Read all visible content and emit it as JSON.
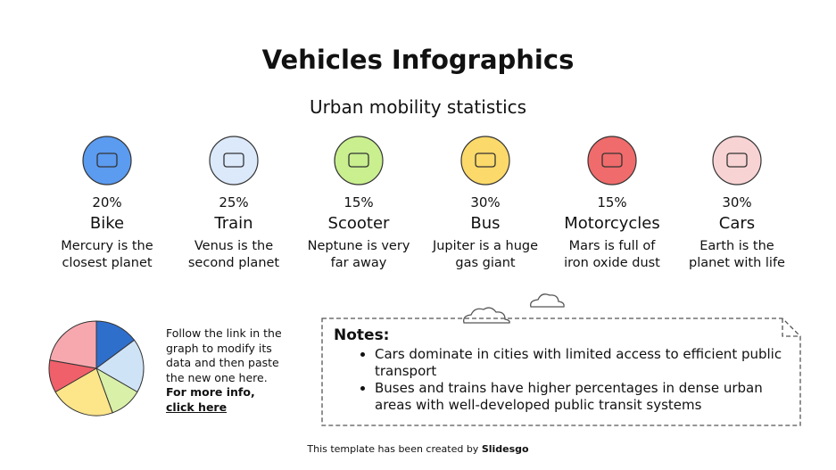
{
  "header": {
    "title": "Vehicles Infographics",
    "subtitle": "Urban mobility statistics"
  },
  "chart_data": {
    "type": "pie",
    "categories": [
      "Bike",
      "Train",
      "Scooter",
      "Bus",
      "Motorcycles",
      "Cars"
    ],
    "values": [
      20,
      25,
      15,
      30,
      15,
      30
    ],
    "value_labels": [
      "20%",
      "25%",
      "15%",
      "30%",
      "15%",
      "30%"
    ],
    "colors": [
      "#2f6fcc",
      "#cfe3f7",
      "#d8f0a8",
      "#fde58a",
      "#f0606a",
      "#f7a8ae"
    ]
  },
  "descriptions": [
    "Mercury is the closest planet",
    "Venus is the second planet",
    "Neptune is very far away",
    "Jupiter is a huge gas giant",
    "Mars is full of iron oxide dust",
    "Earth is the planet with life"
  ],
  "icon_colors": [
    "#5b9bf0",
    "#dbe9fb",
    "#c9ef8f",
    "#fbd96a",
    "#f06b6b",
    "#f8d3d3"
  ],
  "side_text": {
    "body": "Follow the link in the graph to modify its data and then paste the new one here.",
    "bold": "For more info,",
    "link": "click here"
  },
  "notes": {
    "title": "Notes:",
    "items": [
      "Cars dominate in cities with limited access to efficient public transport",
      "Buses and trains have higher percentages in dense urban areas with well-developed public transit systems"
    ]
  },
  "footer": {
    "text": "This template has been created by",
    "brand": "Slidesgo"
  }
}
